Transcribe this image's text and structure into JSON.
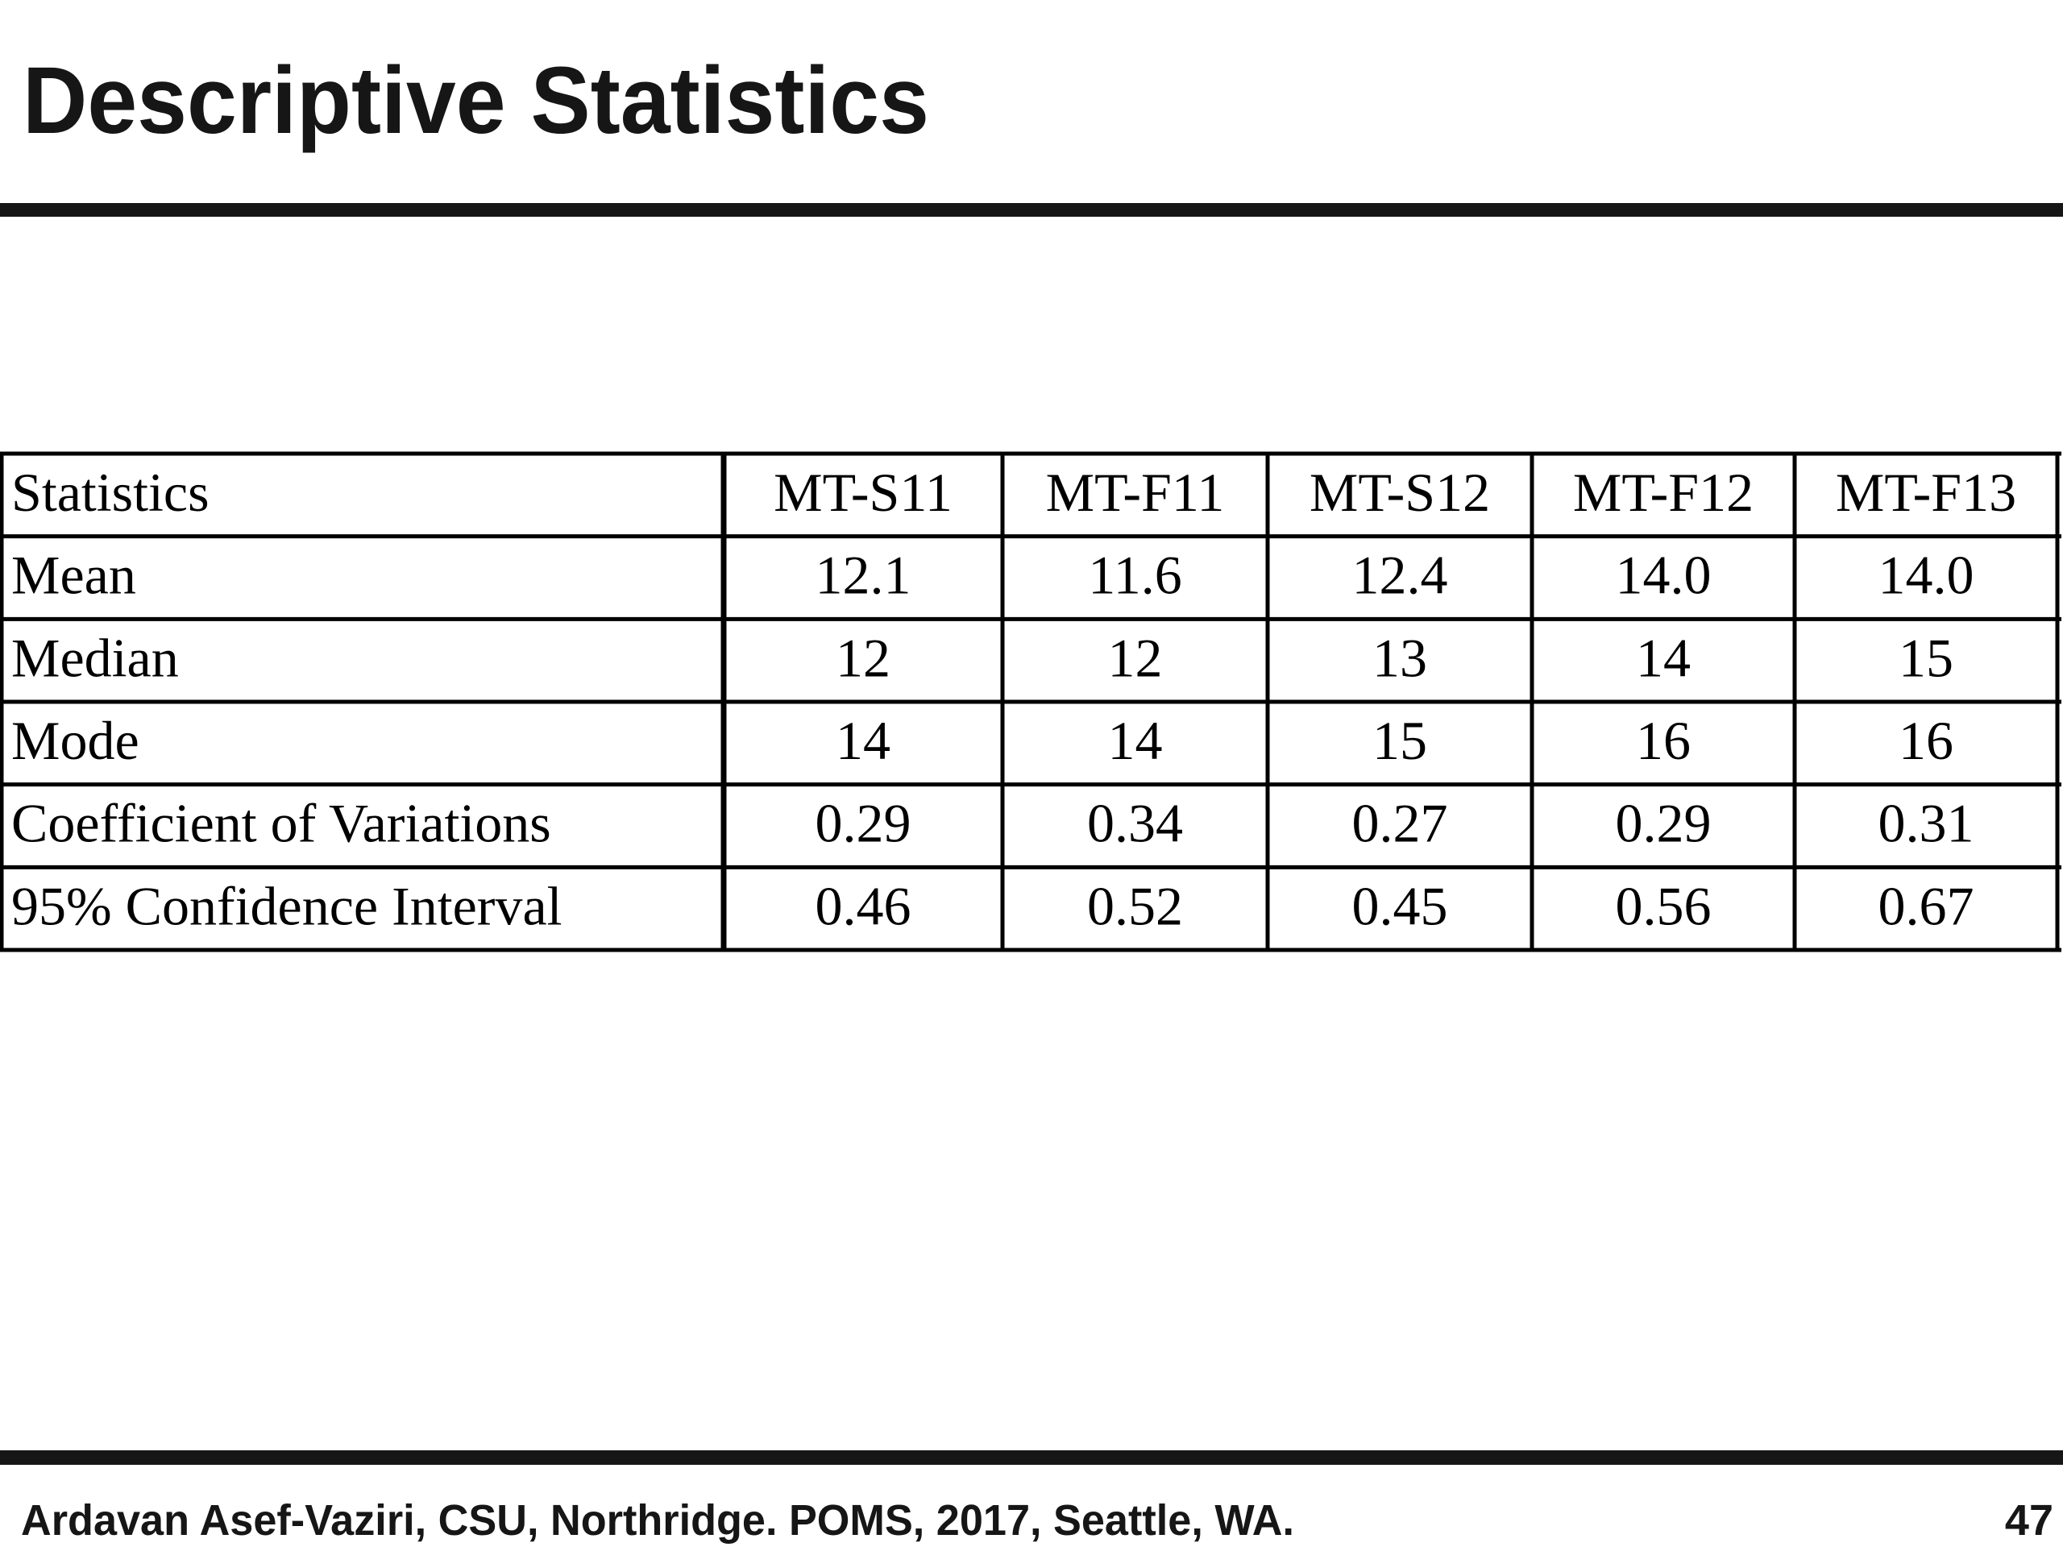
{
  "header": {
    "title": "Descriptive Statistics"
  },
  "table": {
    "header": [
      "Statistics",
      "MT-S11",
      "MT-F11",
      "MT-S12",
      "MT-F12",
      "MT-F13"
    ],
    "rows": [
      [
        "Mean",
        "12.1",
        "11.6",
        "12.4",
        "14.0",
        "14.0"
      ],
      [
        "Median",
        "12",
        "12",
        "13",
        "14",
        "15"
      ],
      [
        "Mode",
        "14",
        "14",
        "15",
        "16",
        "16"
      ],
      [
        "Coefficient of Variations",
        "0.29",
        "0.34",
        "0.27",
        "0.29",
        "0.31"
      ],
      [
        "95% Confidence Interval",
        "0.46",
        "0.52",
        "0.45",
        "0.56",
        "0.67"
      ]
    ]
  },
  "footer": {
    "text": "Ardavan  Asef-Vaziri, CSU, Northridge. POMS, 2017, Seattle, WA.",
    "page": "47"
  }
}
